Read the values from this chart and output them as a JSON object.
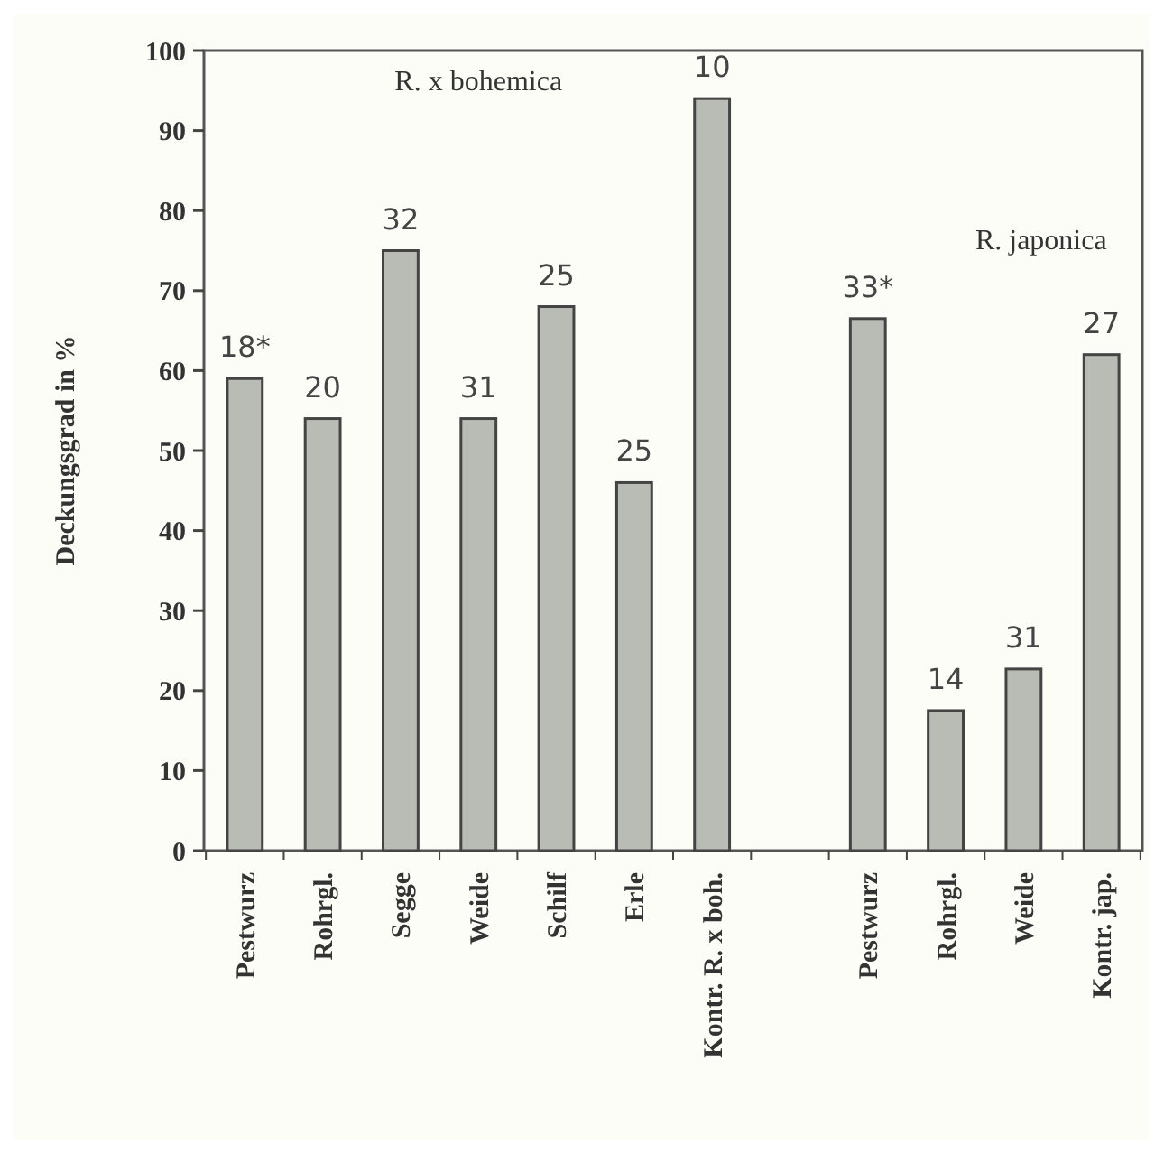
{
  "chart_data": {
    "type": "bar",
    "ylabel": "Deckungsgrad in %",
    "categories": [
      "Pestwurz",
      "Rohrgl.",
      "Segge",
      "Weide",
      "Schilf",
      "Erle",
      "Kontr. R. x boh.",
      null,
      "Pestwurz",
      "Rohrgl.",
      "Weide",
      "Kontr. jap."
    ],
    "values": [
      59,
      54,
      75,
      54,
      68,
      46,
      94,
      null,
      66.5,
      17.5,
      22.7,
      62
    ],
    "color": "#b9bbb5",
    "ylim": [
      0,
      100
    ],
    "yticks": [
      0,
      10,
      20,
      30,
      40,
      50,
      60,
      70,
      80,
      90,
      100
    ],
    "grid": false,
    "annotations": [
      "R. x bohemica",
      "R. japonica",
      "18*",
      "20",
      "32",
      "31",
      "25",
      "25",
      "10",
      "33*",
      "14",
      "31",
      "27"
    ]
  }
}
